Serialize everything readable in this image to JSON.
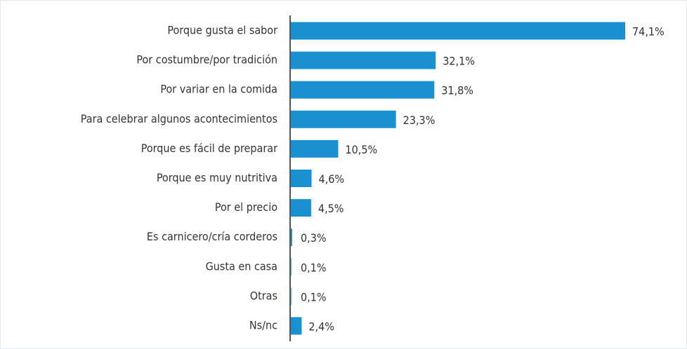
{
  "chart_data": {
    "type": "bar",
    "orientation": "horizontal",
    "color": "#1b90d0",
    "categories": [
      "Porque gusta el sabor",
      "Por costumbre/por tradición",
      "Por variar en la comida",
      "Para celebrar algunos acontecimientos",
      "Porque es fácil de preparar",
      "Porque es muy nutritiva",
      "Por el precio",
      "Es carnicero/cría corderos",
      "Gusta en casa",
      "Otras",
      "Ns/nc"
    ],
    "values": [
      74.1,
      32.1,
      31.8,
      23.3,
      10.5,
      4.6,
      4.5,
      0.3,
      0.1,
      0.1,
      2.4
    ],
    "value_labels": [
      "74,1%",
      "32,1%",
      "31,8%",
      "23,3%",
      "10,5%",
      "4,6%",
      "4,5%",
      "0,3%",
      "0,1%",
      "0,1%",
      "2,4%"
    ]
  }
}
